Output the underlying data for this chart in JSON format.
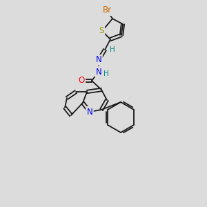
{
  "background_color": "#dcdcdc",
  "bond_color": "#1a1a1a",
  "atom_colors": {
    "Br": "#cc6600",
    "S": "#999900",
    "N": "#0000ee",
    "O": "#ff0000",
    "H": "#008888",
    "C": "#1a1a1a"
  },
  "lw": 1.3,
  "fs": 8.5,
  "figsize": [
    3.0,
    3.0
  ],
  "dpi": 100
}
